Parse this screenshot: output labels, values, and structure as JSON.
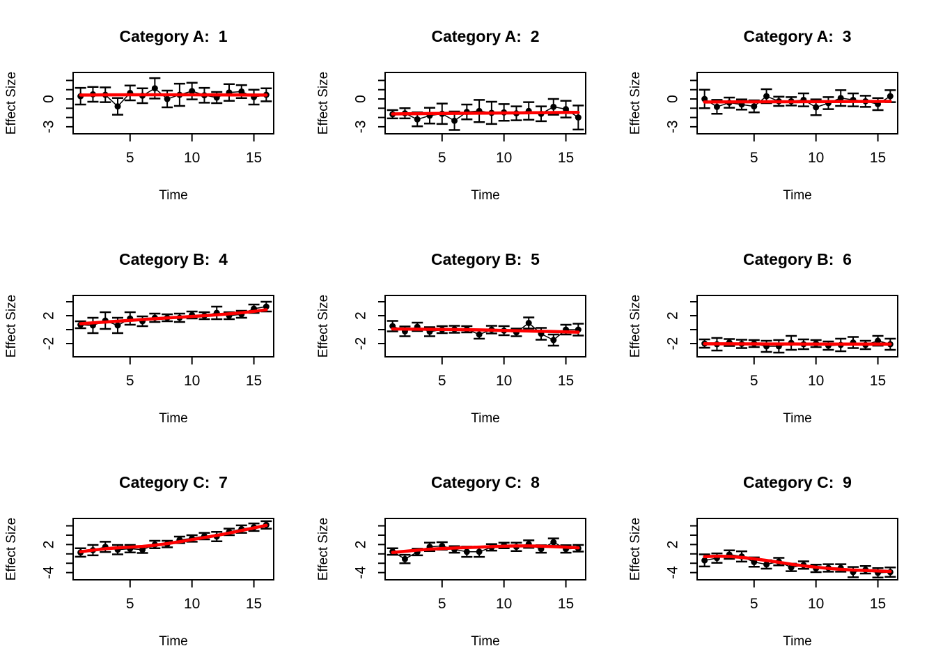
{
  "figure": {
    "ylabel": "Effect Size",
    "xlabel": "Time",
    "colors": {
      "trend_line": "#FF0000",
      "points": "#000000",
      "background": "#FFFFFF"
    }
  },
  "chart_data": [
    {
      "type": "scatter",
      "title": "Category A:  1",
      "xlabel": "Time",
      "ylabel": "Effect Size",
      "x": [
        1,
        2,
        3,
        4,
        5,
        6,
        7,
        8,
        9,
        10,
        11,
        12,
        13,
        14,
        15,
        16
      ],
      "y": [
        0.3,
        0.5,
        0.45,
        -0.8,
        0.65,
        0.35,
        1.15,
        0.0,
        0.45,
        0.85,
        0.4,
        0.15,
        0.7,
        0.8,
        0.2,
        0.45
      ],
      "se": [
        0.9,
        0.8,
        0.8,
        0.9,
        0.8,
        0.8,
        1.1,
        0.9,
        1.2,
        0.9,
        0.8,
        0.6,
        0.9,
        0.7,
        0.8,
        0.7
      ],
      "smooth": [
        0.42,
        0.43,
        0.44,
        0.44,
        0.45,
        0.45,
        0.45,
        0.45,
        0.45,
        0.45,
        0.44,
        0.44,
        0.43,
        0.43,
        0.42,
        0.42
      ],
      "xlim": [
        0.4,
        16.6
      ],
      "ylim": [
        -3.76,
        2.86
      ],
      "xticks": [
        5,
        10,
        15
      ],
      "yticks": [
        2,
        1,
        0,
        -1,
        -2,
        -3
      ],
      "ytick_labels": [
        null,
        null,
        "0",
        null,
        null,
        "-3"
      ]
    },
    {
      "type": "scatter",
      "title": "Category A:  2",
      "xlabel": "Time",
      "ylabel": "Effect Size",
      "x": [
        1,
        2,
        3,
        4,
        5,
        6,
        7,
        8,
        9,
        10,
        11,
        12,
        13,
        14,
        15,
        16
      ],
      "y": [
        -1.65,
        -1.55,
        -2.2,
        -1.8,
        -1.6,
        -2.35,
        -1.4,
        -1.3,
        -1.5,
        -1.45,
        -1.55,
        -1.3,
        -1.6,
        -0.85,
        -1.1,
        -2.0
      ],
      "se": [
        0.45,
        0.55,
        0.75,
        0.85,
        1.1,
        1.0,
        0.8,
        1.2,
        1.2,
        0.9,
        0.75,
        0.95,
        0.8,
        0.85,
        0.9,
        1.3
      ],
      "smooth": [
        -1.62,
        -1.6,
        -1.59,
        -1.57,
        -1.56,
        -1.55,
        -1.54,
        -1.53,
        -1.52,
        -1.51,
        -1.5,
        -1.49,
        -1.48,
        -1.47,
        -1.46,
        -1.45
      ],
      "xlim": [
        0.4,
        16.6
      ],
      "ylim": [
        -3.76,
        2.86
      ],
      "xticks": [
        5,
        10,
        15
      ],
      "yticks": [
        2,
        1,
        0,
        -1,
        -2,
        -3
      ],
      "ytick_labels": [
        null,
        null,
        "0",
        null,
        null,
        "-3"
      ]
    },
    {
      "type": "scatter",
      "title": "Category A:  3",
      "xlabel": "Time",
      "ylabel": "Effect Size",
      "x": [
        1,
        2,
        3,
        4,
        5,
        6,
        7,
        8,
        9,
        10,
        11,
        12,
        13,
        14,
        15,
        16
      ],
      "y": [
        0.0,
        -0.85,
        -0.4,
        -0.6,
        -0.8,
        0.3,
        -0.25,
        -0.25,
        -0.1,
        -0.9,
        -0.45,
        0.1,
        -0.1,
        -0.25,
        -0.55,
        0.3
      ],
      "se": [
        1.0,
        0.75,
        0.55,
        0.55,
        0.65,
        0.75,
        0.5,
        0.45,
        0.7,
        0.85,
        0.65,
        0.85,
        0.7,
        0.6,
        0.65,
        0.65
      ],
      "smooth": [
        -0.33,
        -0.32,
        -0.32,
        -0.31,
        -0.31,
        -0.3,
        -0.3,
        -0.3,
        -0.29,
        -0.29,
        -0.28,
        -0.28,
        -0.27,
        -0.27,
        -0.26,
        -0.26
      ],
      "xlim": [
        0.4,
        16.6
      ],
      "ylim": [
        -3.76,
        2.86
      ],
      "xticks": [
        5,
        10,
        15
      ],
      "yticks": [
        2,
        1,
        0,
        -1,
        -2,
        -3
      ],
      "ytick_labels": [
        null,
        null,
        "0",
        null,
        null,
        "-3"
      ]
    },
    {
      "type": "scatter",
      "title": "Category B:  4",
      "xlabel": "Time",
      "ylabel": "Effect Size",
      "x": [
        1,
        2,
        3,
        4,
        5,
        6,
        7,
        8,
        9,
        10,
        11,
        12,
        13,
        14,
        15,
        16
      ],
      "y": [
        0.7,
        0.6,
        1.3,
        0.6,
        1.6,
        1.2,
        1.7,
        1.7,
        1.7,
        2.1,
        2.0,
        2.4,
        2.0,
        2.2,
        3.0,
        3.3
      ],
      "se": [
        0.5,
        1.1,
        1.2,
        1.1,
        0.9,
        0.7,
        0.6,
        0.5,
        0.6,
        0.5,
        0.5,
        0.9,
        0.5,
        0.5,
        0.6,
        0.7
      ],
      "smooth": [
        0.85,
        0.97,
        1.09,
        1.21,
        1.33,
        1.45,
        1.56,
        1.67,
        1.78,
        1.89,
        2.0,
        2.12,
        2.26,
        2.42,
        2.62,
        2.85
      ],
      "xlim": [
        0.4,
        16.6
      ],
      "ylim": [
        -3.9,
        4.9
      ],
      "xticks": [
        5,
        10,
        15
      ],
      "yticks": [
        4,
        2,
        0,
        -2
      ],
      "ytick_labels": [
        null,
        "2",
        null,
        "-2"
      ]
    },
    {
      "type": "scatter",
      "title": "Category B:  5",
      "xlabel": "Time",
      "ylabel": "Effect Size",
      "x": [
        1,
        2,
        3,
        4,
        5,
        6,
        7,
        8,
        9,
        10,
        11,
        12,
        13,
        14,
        15,
        16
      ],
      "y": [
        0.5,
        -0.25,
        0.4,
        -0.3,
        0.0,
        0.05,
        0.05,
        -0.7,
        0.0,
        -0.15,
        -0.4,
        0.95,
        -0.6,
        -1.5,
        0.0,
        0.0
      ],
      "se": [
        0.75,
        0.7,
        0.6,
        0.65,
        0.5,
        0.5,
        0.45,
        0.6,
        0.55,
        0.65,
        0.55,
        0.8,
        0.85,
        0.8,
        0.7,
        0.85
      ],
      "smooth": [
        0.1,
        0.08,
        0.06,
        0.05,
        0.03,
        0.01,
        -0.01,
        -0.04,
        -0.08,
        -0.12,
        -0.16,
        -0.2,
        -0.24,
        -0.28,
        -0.32,
        -0.36
      ],
      "xlim": [
        0.4,
        16.6
      ],
      "ylim": [
        -3.9,
        4.9
      ],
      "xticks": [
        5,
        10,
        15
      ],
      "yticks": [
        4,
        2,
        0,
        -2
      ],
      "ytick_labels": [
        null,
        "2",
        null,
        "-2"
      ]
    },
    {
      "type": "scatter",
      "title": "Category B:  6",
      "xlabel": "Time",
      "ylabel": "Effect Size",
      "x": [
        1,
        2,
        3,
        4,
        5,
        6,
        7,
        8,
        9,
        10,
        11,
        12,
        13,
        14,
        15,
        16
      ],
      "y": [
        -2.0,
        -2.1,
        -1.85,
        -2.05,
        -2.0,
        -2.4,
        -2.4,
        -1.9,
        -2.1,
        -2.0,
        -2.3,
        -2.2,
        -1.85,
        -2.2,
        -1.6,
        -2.1
      ],
      "se": [
        0.6,
        0.9,
        0.5,
        0.6,
        0.5,
        0.8,
        0.9,
        1.0,
        0.7,
        0.5,
        0.6,
        0.9,
        0.8,
        0.6,
        0.7,
        0.8
      ],
      "smooth": [
        -2.03,
        -2.04,
        -2.04,
        -2.05,
        -2.05,
        -2.06,
        -2.06,
        -2.06,
        -2.07,
        -2.07,
        -2.07,
        -2.07,
        -2.07,
        -2.08,
        -2.08,
        -2.08
      ],
      "xlim": [
        0.4,
        16.6
      ],
      "ylim": [
        -3.9,
        4.9
      ],
      "xticks": [
        5,
        10,
        15
      ],
      "yticks": [
        4,
        2,
        0,
        -2
      ],
      "ytick_labels": [
        null,
        "2",
        null,
        "-2"
      ]
    },
    {
      "type": "scatter",
      "title": "Category C:  7",
      "xlabel": "Time",
      "ylabel": "Effect Size",
      "x": [
        1,
        2,
        3,
        4,
        5,
        6,
        7,
        8,
        9,
        10,
        11,
        12,
        13,
        14,
        15,
        16
      ],
      "y": [
        0.3,
        0.8,
        1.5,
        0.9,
        1.1,
        0.9,
        2.0,
        2.1,
        3.0,
        3.3,
        3.8,
        3.7,
        4.7,
        5.3,
        5.7,
        6.2
      ],
      "se": [
        0.9,
        1.1,
        1.1,
        1.0,
        0.8,
        0.7,
        0.8,
        0.7,
        0.7,
        0.7,
        0.7,
        1.0,
        0.7,
        0.8,
        0.8,
        0.8
      ],
      "smooth": [
        0.45,
        0.8,
        1.1,
        1.3,
        1.45,
        1.6,
        1.85,
        2.2,
        2.6,
        3.05,
        3.5,
        3.95,
        4.45,
        5.0,
        5.55,
        6.1
      ],
      "xlim": [
        0.4,
        16.6
      ],
      "ylim": [
        -5.54,
        7.57
      ],
      "xticks": [
        5,
        10,
        15
      ],
      "yticks": [
        6,
        4,
        2,
        0,
        -2,
        -4
      ],
      "ytick_labels": [
        null,
        null,
        "2",
        null,
        null,
        "-4"
      ]
    },
    {
      "type": "scatter",
      "title": "Category C:  8",
      "xlabel": "Time",
      "ylabel": "Effect Size",
      "x": [
        1,
        2,
        3,
        4,
        5,
        6,
        7,
        8,
        9,
        10,
        11,
        12,
        13,
        14,
        15,
        16
      ],
      "y": [
        0.5,
        -1.1,
        0.4,
        1.5,
        1.7,
        0.95,
        0.45,
        0.45,
        1.4,
        1.8,
        1.5,
        2.1,
        1.05,
        2.5,
        1.05,
        1.2
      ],
      "se": [
        0.7,
        0.9,
        0.7,
        0.9,
        0.8,
        0.7,
        1.1,
        1.1,
        0.7,
        0.6,
        0.9,
        0.8,
        0.8,
        0.8,
        0.8,
        0.7
      ],
      "smooth": [
        0.3,
        0.55,
        0.8,
        1.0,
        1.15,
        1.25,
        1.35,
        1.45,
        1.55,
        1.65,
        1.7,
        1.7,
        1.65,
        1.55,
        1.45,
        1.3
      ],
      "xlim": [
        0.4,
        16.6
      ],
      "ylim": [
        -5.54,
        7.57
      ],
      "xticks": [
        5,
        10,
        15
      ],
      "yticks": [
        6,
        4,
        2,
        0,
        -2,
        -4
      ],
      "ytick_labels": [
        null,
        null,
        "2",
        null,
        null,
        "-4"
      ]
    },
    {
      "type": "scatter",
      "title": "Category C:  9",
      "xlabel": "Time",
      "ylabel": "Effect Size",
      "x": [
        1,
        2,
        3,
        4,
        5,
        6,
        7,
        8,
        9,
        10,
        11,
        12,
        13,
        14,
        15,
        16
      ],
      "y": [
        -1.4,
        -0.9,
        -0.15,
        -0.55,
        -1.75,
        -2.25,
        -1.65,
        -2.9,
        -2.4,
        -3.1,
        -3.0,
        -3.0,
        -3.9,
        -3.4,
        -4.05,
        -3.9
      ],
      "se": [
        1.3,
        1.0,
        0.9,
        1.1,
        1.0,
        0.9,
        0.8,
        0.8,
        0.8,
        0.8,
        0.8,
        0.8,
        1.1,
        0.8,
        1.0,
        1.0
      ],
      "smooth": [
        -0.6,
        -0.5,
        -0.55,
        -0.75,
        -1.05,
        -1.4,
        -1.8,
        -2.2,
        -2.55,
        -2.85,
        -3.1,
        -3.3,
        -3.45,
        -3.55,
        -3.65,
        -3.75
      ],
      "xlim": [
        0.4,
        16.6
      ],
      "ylim": [
        -5.54,
        7.57
      ],
      "xticks": [
        5,
        10,
        15
      ],
      "yticks": [
        6,
        4,
        2,
        0,
        -2,
        -4
      ],
      "ytick_labels": [
        null,
        null,
        "2",
        null,
        null,
        "-4"
      ]
    }
  ]
}
